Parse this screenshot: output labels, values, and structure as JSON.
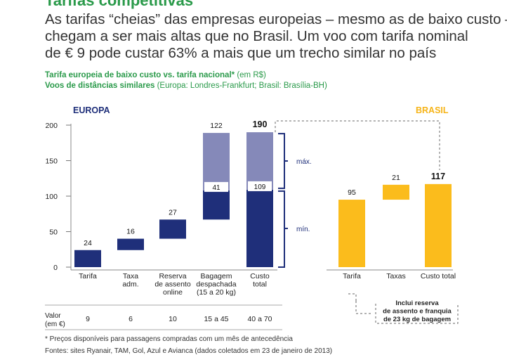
{
  "header": {
    "title": "Tarifas competitivas",
    "subtitle_lines": [
      "As tarifas “cheias” das empresas europeias – mesmo as de baixo custo –",
      "chegam a ser mais altas que no Brasil. Um voo com tarifa nominal",
      "de € 9 pode custar 63% a mais que um trecho similar no país"
    ],
    "source_line1_bold": "Tarifa europeia de baixo custo vs. tarifa nacional*",
    "source_line1_rest": " (em R$)",
    "source_line2_bold": "Voos de distâncias similares",
    "source_line2_rest": " (Europa: Londres-Frankfurt; Brasil: Brasília-BH)"
  },
  "colors": {
    "green": "#2a9a4a",
    "navy": "#1f2f7a",
    "lavender": "#8589b9",
    "yellow": "#fbbc1c",
    "brasil_label": "#f6b418"
  },
  "chart_data": {
    "type": "bar",
    "subtype": "waterfall",
    "ylim": [
      0,
      200
    ],
    "yticks": [
      0,
      50,
      100,
      150,
      200
    ],
    "europa": {
      "label": "EUROPA",
      "categories": [
        "Tarifa",
        "Taxa adm.",
        "Reserva de assento online",
        "Bagagem despachada (15 a 20 kg)",
        "Custo total"
      ],
      "category_lines": [
        [
          "Tarifa"
        ],
        [
          "Taxa",
          "adm."
        ],
        [
          "Reserva",
          "de assento",
          "online"
        ],
        [
          "Bagagem",
          "despachada",
          "(15 a 20 kg)"
        ],
        [
          "Custo",
          "total"
        ]
      ],
      "bars": [
        {
          "base": 0,
          "min": 24,
          "max": null,
          "label": "24"
        },
        {
          "base": 24,
          "min": 16,
          "max": null,
          "label": "16"
        },
        {
          "base": 40,
          "min": 27,
          "max": null,
          "label": "27"
        },
        {
          "base": 67,
          "min": 41,
          "max": 122,
          "label": "122",
          "min_label": "41"
        },
        {
          "base": 0,
          "min": 109,
          "max": 190,
          "label": "190",
          "min_label": "109",
          "bold": true
        }
      ],
      "bracket_max_label": "máx.",
      "bracket_min_label": "mín."
    },
    "brasil": {
      "label": "BRASIL",
      "categories": [
        "Tarifa",
        "Taxas",
        "Custo total"
      ],
      "bars": [
        {
          "base": 0,
          "value": 95,
          "label": "95"
        },
        {
          "base": 95,
          "value": 21,
          "label": "21"
        },
        {
          "base": 0,
          "value": 117,
          "label": "117",
          "bold": true
        }
      ],
      "note_lines": [
        "Inclui reserva",
        "de assento e franquia",
        "de 23 kg de bagagem"
      ]
    },
    "valor_row": {
      "label_lines": [
        "Valor",
        "(em €)"
      ],
      "values": [
        "9",
        "6",
        "10",
        "15 a 45",
        "40 a 70"
      ]
    }
  },
  "footer": {
    "note": "* Preços disponíveis para passagens compradas com um mês de antecedência",
    "sources": "Fontes: sites Ryanair, TAM, Gol, Azul e Avianca (dados coletados em 23 de janeiro de 2013)"
  }
}
